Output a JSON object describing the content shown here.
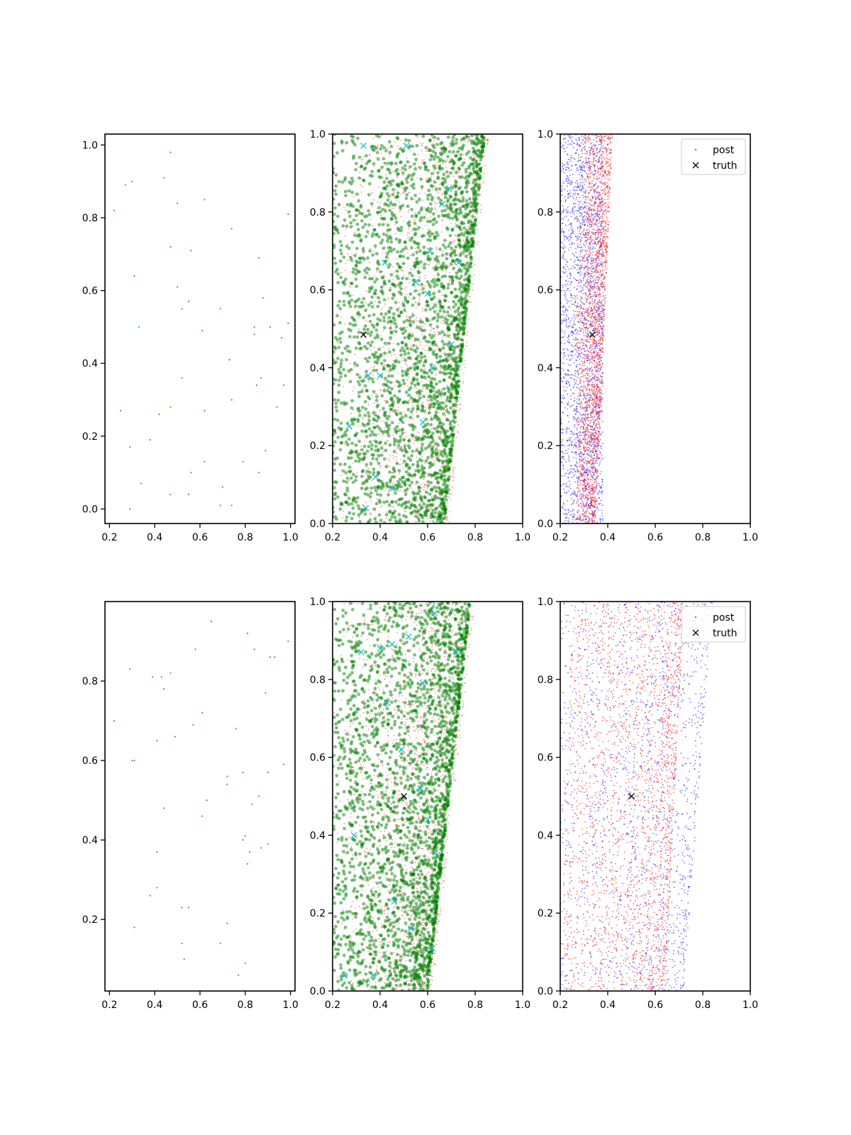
{
  "figure": {
    "title": "",
    "colors": {
      "sparse_points": "#2ca02c",
      "green_points": "#008000",
      "red_points": "#ff0000",
      "blue_points": "#0000ff",
      "cyan_markers": "#17becf",
      "truth_marker": "#000000",
      "axes": "#000000",
      "background": "#ffffff"
    }
  },
  "chart_data": [
    {
      "id": "top-left",
      "type": "scatter",
      "title": "",
      "xlabel": "",
      "ylabel": "",
      "xlim": [
        0.18,
        1.02
      ],
      "ylim": [
        -0.04,
        1.03
      ],
      "xticks": [
        0.2,
        0.4,
        0.6,
        0.8,
        1.0
      ],
      "yticks": [
        0.0,
        0.2,
        0.4,
        0.6,
        0.8,
        1.0
      ],
      "grid": false,
      "series": [
        {
          "style": "sparse",
          "color": "#2ca02c",
          "points": [
            [
              0.47,
              0.98
            ],
            [
              0.44,
              0.91
            ],
            [
              0.3,
              0.9
            ],
            [
              0.27,
              0.89
            ],
            [
              0.62,
              0.85
            ],
            [
              0.5,
              0.84
            ],
            [
              0.22,
              0.82
            ],
            [
              0.99,
              0.81
            ],
            [
              0.74,
              0.77
            ],
            [
              0.47,
              0.72
            ],
            [
              0.56,
              0.71
            ],
            [
              0.86,
              0.69
            ],
            [
              0.31,
              0.64
            ],
            [
              0.5,
              0.61
            ],
            [
              0.88,
              0.58
            ],
            [
              0.55,
              0.57
            ],
            [
              0.52,
              0.55
            ],
            [
              0.69,
              0.55
            ],
            [
              0.33,
              0.5
            ],
            [
              0.84,
              0.5
            ],
            [
              0.91,
              0.5
            ],
            [
              0.99,
              0.51
            ],
            [
              0.61,
              0.49
            ],
            [
              0.84,
              0.48
            ],
            [
              0.96,
              0.47
            ],
            [
              0.73,
              0.41
            ],
            [
              0.52,
              0.36
            ],
            [
              0.87,
              0.36
            ],
            [
              0.85,
              0.34
            ],
            [
              0.97,
              0.34
            ],
            [
              0.74,
              0.3
            ],
            [
              0.47,
              0.28
            ],
            [
              0.94,
              0.28
            ],
            [
              0.62,
              0.27
            ],
            [
              0.25,
              0.27
            ],
            [
              0.42,
              0.26
            ],
            [
              0.38,
              0.19
            ],
            [
              0.29,
              0.17
            ],
            [
              0.89,
              0.16
            ],
            [
              0.79,
              0.13
            ],
            [
              0.62,
              0.13
            ],
            [
              0.56,
              0.1
            ],
            [
              0.86,
              0.1
            ],
            [
              0.34,
              0.07
            ],
            [
              0.7,
              0.06
            ],
            [
              0.47,
              0.04
            ],
            [
              0.55,
              0.04
            ],
            [
              0.74,
              0.01
            ],
            [
              0.69,
              0.01
            ],
            [
              0.29,
              0.0
            ]
          ]
        }
      ]
    },
    {
      "id": "top-middle",
      "type": "scatter",
      "title": "",
      "xlabel": "",
      "ylabel": "",
      "xlim": [
        0.2,
        1.0
      ],
      "ylim": [
        0.0,
        1.0
      ],
      "xticks": [
        0.2,
        0.4,
        0.6,
        0.8,
        1.0
      ],
      "yticks": [
        0.0,
        0.2,
        0.4,
        0.6,
        0.8,
        1.0
      ],
      "grid": false,
      "distribution": {
        "green_x_min": 0.2,
        "green_x_max_bottom": 0.67,
        "green_x_max_top": 0.84,
        "green_x_peak_bottom": 0.62,
        "green_x_peak_top": 0.74,
        "green_count": 2600,
        "red_count": 1700
      },
      "cyan_markers": [
        [
          0.33,
          0.97
        ],
        [
          0.51,
          0.97
        ],
        [
          0.42,
          0.67
        ],
        [
          0.55,
          0.62
        ],
        [
          0.61,
          0.7
        ],
        [
          0.66,
          0.82
        ],
        [
          0.69,
          0.86
        ],
        [
          0.73,
          0.67
        ],
        [
          0.35,
          0.38
        ],
        [
          0.4,
          0.38
        ],
        [
          0.27,
          0.25
        ],
        [
          0.38,
          0.12
        ],
        [
          0.34,
          0.04
        ],
        [
          0.62,
          0.4
        ],
        [
          0.58,
          0.26
        ],
        [
          0.63,
          0.0
        ],
        [
          0.45,
          0.09
        ],
        [
          0.6,
          0.59
        ],
        [
          0.7,
          0.46
        ]
      ],
      "truth": [
        0.33,
        0.485
      ]
    },
    {
      "id": "top-right",
      "type": "scatter",
      "title": "",
      "xlabel": "",
      "ylabel": "",
      "xlim": [
        0.2,
        1.0
      ],
      "ylim": [
        0.0,
        1.0
      ],
      "xticks": [
        0.2,
        0.4,
        0.6,
        0.8,
        1.0
      ],
      "yticks": [
        0.0,
        0.2,
        0.4,
        0.6,
        0.8,
        1.0
      ],
      "grid": false,
      "distribution": {
        "blue_x_range": [
          0.2,
          0.38
        ],
        "red_x_bottom": [
          0.25,
          0.35
        ],
        "red_x_top": [
          0.27,
          0.42
        ],
        "blue_count": 2200,
        "red_count": 2200
      },
      "legend": {
        "placement": "upper-right",
        "entries": [
          "post",
          "truth"
        ]
      },
      "truth": [
        0.335,
        0.485
      ]
    },
    {
      "id": "bottom-left",
      "type": "scatter",
      "title": "",
      "xlabel": "",
      "ylabel": "",
      "xlim": [
        0.18,
        1.02
      ],
      "ylim": [
        0.02,
        1.0
      ],
      "xticks": [
        0.2,
        0.4,
        0.6,
        0.8,
        1.0
      ],
      "yticks": [
        0.2,
        0.4,
        0.6,
        0.8
      ],
      "grid": false,
      "series": [
        {
          "style": "sparse",
          "color": "#2ca02c",
          "points": [
            [
              0.65,
              0.95
            ],
            [
              0.81,
              0.92
            ],
            [
              0.99,
              0.9
            ],
            [
              0.84,
              0.88
            ],
            [
              0.58,
              0.88
            ],
            [
              0.91,
              0.86
            ],
            [
              0.93,
              0.86
            ],
            [
              0.29,
              0.83
            ],
            [
              0.47,
              0.82
            ],
            [
              0.39,
              0.81
            ],
            [
              0.43,
              0.81
            ],
            [
              0.44,
              0.78
            ],
            [
              0.89,
              0.77
            ],
            [
              0.61,
              0.72
            ],
            [
              0.57,
              0.69
            ],
            [
              0.22,
              0.7
            ],
            [
              0.76,
              0.68
            ],
            [
              0.49,
              0.66
            ],
            [
              0.41,
              0.65
            ],
            [
              0.31,
              0.6
            ],
            [
              0.3,
              0.6
            ],
            [
              0.97,
              0.59
            ],
            [
              0.9,
              0.57
            ],
            [
              0.79,
              0.57
            ],
            [
              0.72,
              0.56
            ],
            [
              0.72,
              0.54
            ],
            [
              0.86,
              0.51
            ],
            [
              0.63,
              0.5
            ],
            [
              0.83,
              0.49
            ],
            [
              0.44,
              0.48
            ],
            [
              0.61,
              0.46
            ],
            [
              0.8,
              0.41
            ],
            [
              0.79,
              0.4
            ],
            [
              0.9,
              0.39
            ],
            [
              0.87,
              0.38
            ],
            [
              0.82,
              0.37
            ],
            [
              0.41,
              0.37
            ],
            [
              0.81,
              0.34
            ],
            [
              0.41,
              0.28
            ],
            [
              0.38,
              0.26
            ],
            [
              0.52,
              0.23
            ],
            [
              0.55,
              0.23
            ],
            [
              0.72,
              0.19
            ],
            [
              0.31,
              0.18
            ],
            [
              0.52,
              0.14
            ],
            [
              0.69,
              0.14
            ],
            [
              0.53,
              0.1
            ],
            [
              0.8,
              0.09
            ],
            [
              0.77,
              0.06
            ]
          ]
        }
      ]
    },
    {
      "id": "bottom-middle",
      "type": "scatter",
      "title": "",
      "xlabel": "",
      "ylabel": "",
      "xlim": [
        0.2,
        1.0
      ],
      "ylim": [
        0.0,
        1.0
      ],
      "xticks": [
        0.2,
        0.4,
        0.6,
        0.8,
        1.0
      ],
      "yticks": [
        0.0,
        0.2,
        0.4,
        0.6,
        0.8,
        1.0
      ],
      "grid": false,
      "distribution": {
        "green_x_min": 0.2,
        "green_x_max_bottom": 0.6,
        "green_x_max_top": 0.78,
        "green_x_peak_bottom": 0.5,
        "green_x_peak_top": 0.64,
        "green_count": 2600,
        "red_count": 1700
      },
      "cyan_markers": [
        [
          0.32,
          0.87
        ],
        [
          0.4,
          0.88
        ],
        [
          0.45,
          0.89
        ],
        [
          0.52,
          0.91
        ],
        [
          0.72,
          0.87
        ],
        [
          0.58,
          0.79
        ],
        [
          0.62,
          1.0
        ],
        [
          0.63,
          0.97
        ],
        [
          0.29,
          0.4
        ],
        [
          0.37,
          0.04
        ],
        [
          0.25,
          0.04
        ],
        [
          0.62,
          0.11
        ],
        [
          0.64,
          0.35
        ],
        [
          0.53,
          0.16
        ],
        [
          0.46,
          0.23
        ],
        [
          0.57,
          0.52
        ],
        [
          0.43,
          0.74
        ],
        [
          0.6,
          0.44
        ],
        [
          0.49,
          0.62
        ]
      ],
      "truth": [
        0.5,
        0.5
      ]
    },
    {
      "id": "bottom-right",
      "type": "scatter",
      "title": "",
      "xlabel": "",
      "ylabel": "",
      "xlim": [
        0.2,
        1.0
      ],
      "ylim": [
        0.0,
        1.0
      ],
      "xticks": [
        0.2,
        0.4,
        0.6,
        0.8,
        1.0
      ],
      "yticks": [
        0.0,
        0.2,
        0.4,
        0.6,
        0.8,
        1.0
      ],
      "grid": false,
      "distribution": {
        "blue_x_bottom": [
          0.2,
          0.72
        ],
        "blue_x_top": [
          0.2,
          0.84
        ],
        "red_x_bottom": [
          0.2,
          0.64
        ],
        "red_x_top": [
          0.25,
          0.72
        ],
        "blue_count": 1600,
        "red_count": 2200
      },
      "legend": {
        "placement": "upper-right",
        "entries": [
          "post",
          "truth"
        ]
      },
      "truth": [
        0.5,
        0.5
      ]
    }
  ]
}
